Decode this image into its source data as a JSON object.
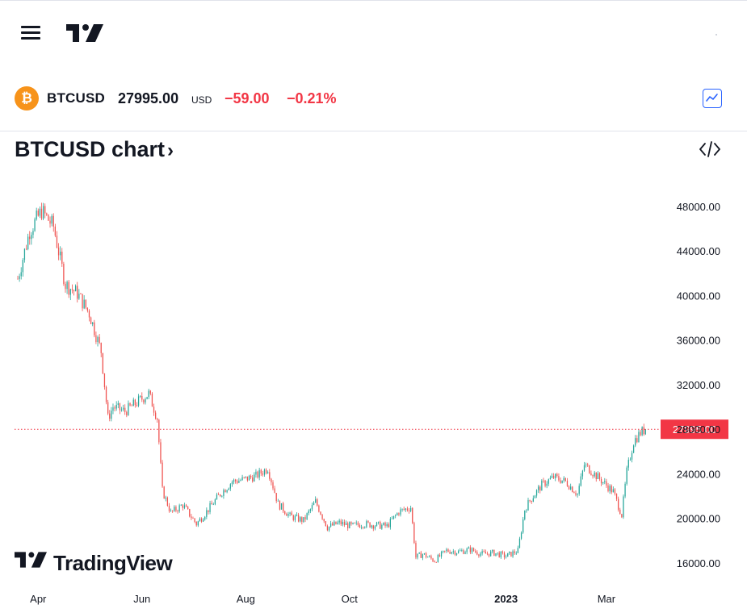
{
  "header": {
    "menu_icon": "hamburger-menu-icon",
    "logo_icon": "tradingview-logo-icon"
  },
  "ticker": {
    "coin_icon": "bitcoin-icon",
    "coin_glyph": "₿",
    "symbol": "BTCUSD",
    "price": "27995.00",
    "currency": "USD",
    "change": "−59.00",
    "change_pct": "−0.21%",
    "toggle_icon": "line-chart-icon"
  },
  "chart_header": {
    "title": "BTCUSD chart",
    "chevron": "›",
    "embed_icon": "code-brackets-icon"
  },
  "branding": {
    "text": "TradingView"
  },
  "colors": {
    "up": "#26a69a",
    "down": "#ef5350",
    "price_line": "#f23645",
    "change": "#f23645",
    "toggle": "#2962ff",
    "coin": "#f7931a"
  },
  "chart_data": {
    "type": "candlestick",
    "title": "",
    "xlabel": "",
    "ylabel": "",
    "ylim": [
      14400,
      50600
    ],
    "yticks": [
      48000,
      44000,
      40000,
      36000,
      32000,
      28000,
      24000,
      20000,
      16000
    ],
    "ytick_labels": [
      "48000.00",
      "44000.00",
      "40000.00",
      "36000.00",
      "32000.00",
      "28000.00",
      "24000.00",
      "20000.00",
      "16000.00"
    ],
    "xticks": [
      "Apr",
      "Jun",
      "Aug",
      "Oct",
      "2023",
      "Mar"
    ],
    "xtick_positions": [
      "2022-04-01",
      "2022-06-01",
      "2022-08-01",
      "2022-10-01",
      "2023-01-01",
      "2023-03-01"
    ],
    "x_range": [
      "2022-03-20",
      "2023-03-30"
    ],
    "last_price": 27995.0,
    "last_price_label": "27995.00",
    "grid": false,
    "series": [
      {
        "interval": "daily (approximate close path)",
        "x": [
          "2022-03-20",
          "2022-03-27",
          "2022-04-03",
          "2022-04-10",
          "2022-04-17",
          "2022-04-24",
          "2022-05-01",
          "2022-05-08",
          "2022-05-12",
          "2022-05-15",
          "2022-05-22",
          "2022-05-29",
          "2022-06-05",
          "2022-06-10",
          "2022-06-13",
          "2022-06-18",
          "2022-06-25",
          "2022-07-03",
          "2022-07-10",
          "2022-07-17",
          "2022-07-24",
          "2022-07-31",
          "2022-08-07",
          "2022-08-14",
          "2022-08-20",
          "2022-08-27",
          "2022-09-04",
          "2022-09-11",
          "2022-09-18",
          "2022-09-25",
          "2022-10-02",
          "2022-10-09",
          "2022-10-16",
          "2022-10-23",
          "2022-10-30",
          "2022-11-06",
          "2022-11-09",
          "2022-11-13",
          "2022-11-20",
          "2022-11-27",
          "2022-12-04",
          "2022-12-11",
          "2022-12-18",
          "2022-12-25",
          "2023-01-01",
          "2023-01-08",
          "2023-01-12",
          "2023-01-15",
          "2023-01-22",
          "2023-01-29",
          "2023-02-05",
          "2023-02-12",
          "2023-02-16",
          "2023-02-19",
          "2023-02-26",
          "2023-03-05",
          "2023-03-10",
          "2023-03-13",
          "2023-03-17",
          "2023-03-21",
          "2023-03-24"
        ],
        "close": [
          41500,
          45800,
          47600,
          46200,
          41000,
          40200,
          38400,
          35000,
          29000,
          30000,
          29600,
          30400,
          31200,
          29000,
          22500,
          20500,
          21200,
          19500,
          20800,
          22200,
          23300,
          23500,
          23800,
          24500,
          21300,
          20200,
          19800,
          21500,
          19200,
          19600,
          19300,
          19500,
          19400,
          19300,
          20600,
          21000,
          16500,
          16800,
          16200,
          17100,
          17000,
          17200,
          16800,
          16900,
          16600,
          17100,
          20800,
          21600,
          23000,
          23700,
          23300,
          22200,
          24800,
          24400,
          23400,
          22400,
          20300,
          24200,
          26900,
          27700,
          27995
        ]
      }
    ]
  }
}
